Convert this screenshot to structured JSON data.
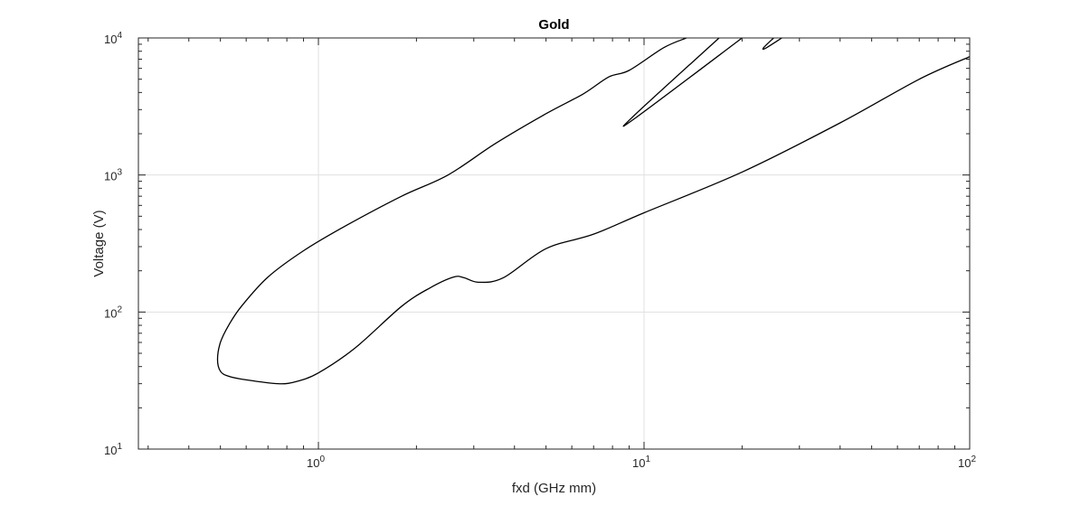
{
  "chart_data": {
    "type": "line",
    "title": "Gold",
    "xlabel": "fxd (GHz mm)",
    "ylabel": "Voltage (V)",
    "xscale": "log",
    "yscale": "log",
    "xlim": [
      0.28,
      100
    ],
    "ylim": [
      10,
      10000
    ],
    "grid": true,
    "box": true,
    "x_ticks": [
      {
        "base": "10",
        "exp": "0",
        "value": 1
      },
      {
        "base": "10",
        "exp": "1",
        "value": 10
      },
      {
        "base": "10",
        "exp": "2",
        "value": 100
      }
    ],
    "y_ticks": [
      {
        "base": "10",
        "exp": "1",
        "value": 10
      },
      {
        "base": "10",
        "exp": "2",
        "value": 100
      },
      {
        "base": "10",
        "exp": "3",
        "value": 1000
      },
      {
        "base": "10",
        "exp": "4",
        "value": 10000
      }
    ],
    "line_color": "#000000",
    "grid_color": "#e0e0e0",
    "series": [
      {
        "x": [
          13.5,
          11.5,
          9.0,
          7.8,
          6.5,
          5.0,
          3.5,
          2.5,
          1.8,
          1.2,
          0.9,
          0.7,
          0.58,
          0.53,
          0.5,
          0.49,
          0.5,
          0.53,
          0.6,
          0.75,
          0.85,
          1.0,
          1.3,
          1.8,
          2.2,
          2.6,
          2.8,
          3.1,
          3.7,
          5.0,
          7.0,
          10.0,
          20.0,
          40.0,
          70.0,
          100.0
        ],
        "y": [
          10000,
          8500,
          5800,
          5200,
          3900,
          2800,
          1700,
          1000,
          700,
          420,
          280,
          180,
          110,
          80,
          60,
          45,
          37,
          34,
          32,
          30,
          31,
          36,
          55,
          110,
          150,
          180,
          178,
          165,
          178,
          290,
          370,
          530,
          1050,
          2400,
          5000,
          7300
        ]
      },
      {
        "x": [
          17.0,
          9.3,
          9.5,
          20.0
        ],
        "y": [
          10000,
          2700,
          2650,
          10000
        ]
      },
      {
        "x": [
          25.0,
          23.3,
          23.6,
          26.5
        ],
        "y": [
          10000,
          8500,
          8400,
          10000
        ]
      }
    ]
  }
}
